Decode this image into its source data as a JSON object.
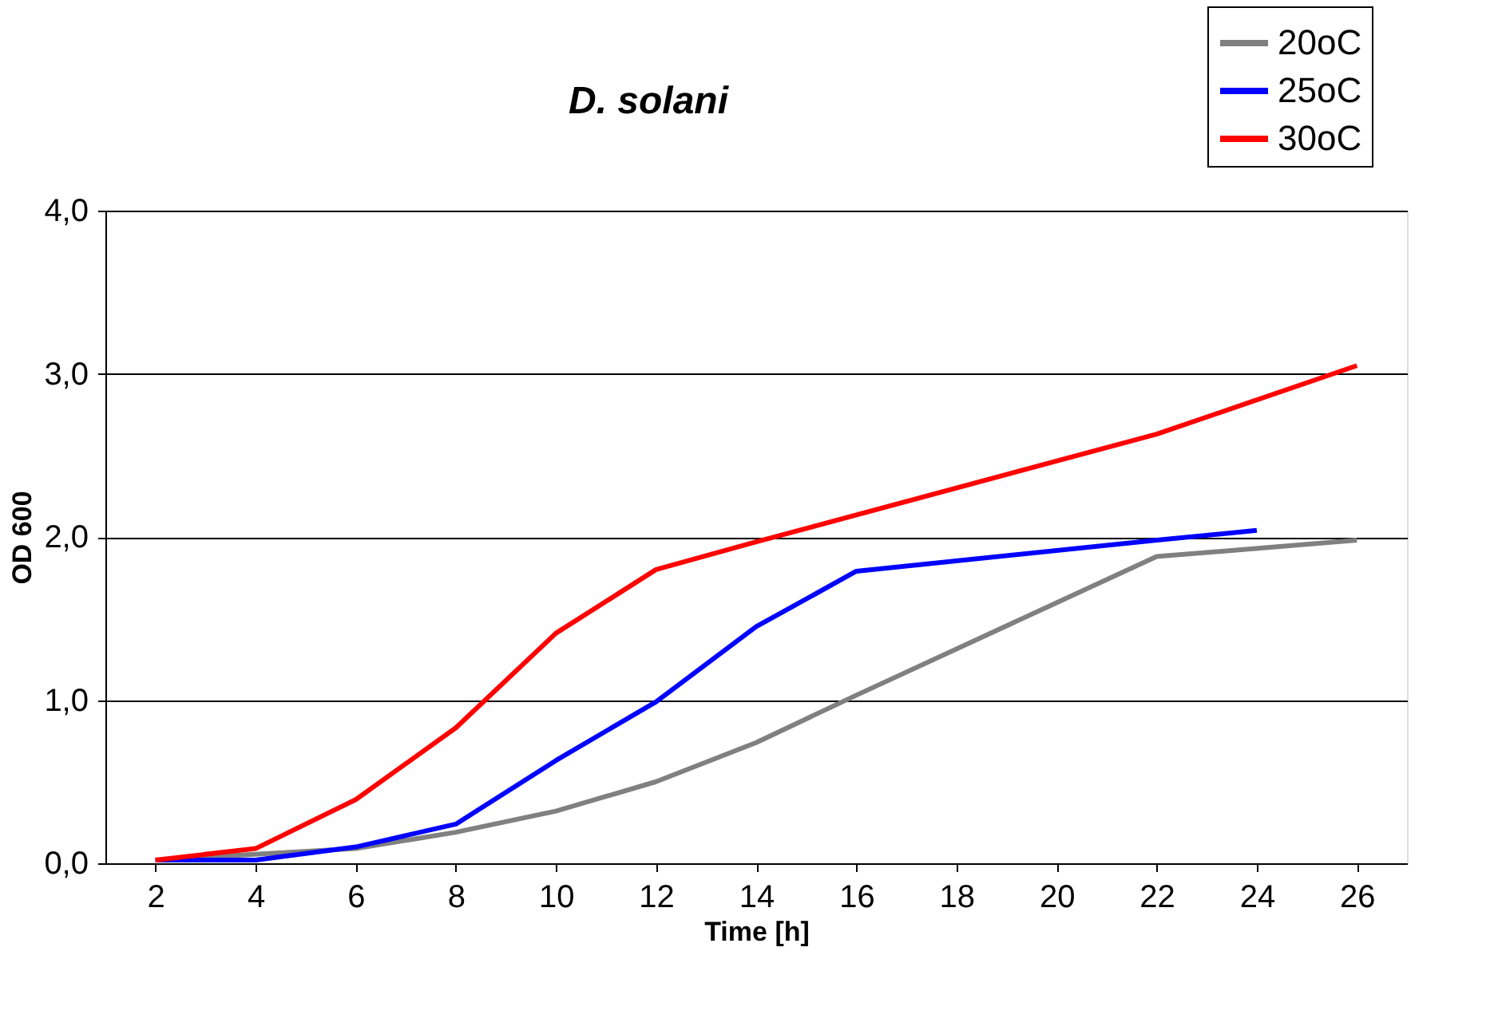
{
  "chart_data": {
    "type": "line",
    "title": "D. solani",
    "xlabel": "Time [h]",
    "ylabel": "OD 600",
    "xlim": [
      1,
      27
    ],
    "xticks": [
      2,
      4,
      6,
      8,
      10,
      12,
      14,
      16,
      18,
      20,
      22,
      24,
      26
    ],
    "ylim": [
      0,
      4
    ],
    "yticks": [
      {
        "value": 0,
        "label": "0,0"
      },
      {
        "value": 1,
        "label": "1,0"
      },
      {
        "value": 2,
        "label": "2,0"
      },
      {
        "value": 3,
        "label": "3,0"
      },
      {
        "value": 4,
        "label": "4,0"
      }
    ],
    "grid": "y",
    "legend": "top right",
    "marker": "none",
    "line_style": "solid",
    "series": [
      {
        "name": "20oC",
        "color": "#808080",
        "x": [
          2,
          4,
          6,
          8,
          10,
          12,
          14,
          16,
          22,
          26
        ],
        "values": [
          0.02,
          null,
          0.09,
          0.19,
          0.32,
          0.5,
          0.74,
          1.03,
          1.88,
          1.98
        ]
      },
      {
        "name": "25oC",
        "color": "#0000ff",
        "x": [
          2,
          4,
          6,
          8,
          10,
          12,
          14,
          16,
          22,
          24
        ],
        "values": [
          0.02,
          0.02,
          0.1,
          0.24,
          0.63,
          0.99,
          1.45,
          1.79,
          1.98,
          2.04
        ]
      },
      {
        "name": "30oC",
        "color": "#ff0000",
        "x": [
          2,
          4,
          6,
          8,
          10,
          12,
          14,
          22,
          26
        ],
        "values": [
          0.02,
          0.09,
          0.39,
          0.83,
          1.41,
          1.8,
          1.97,
          2.63,
          3.05
        ]
      }
    ]
  }
}
